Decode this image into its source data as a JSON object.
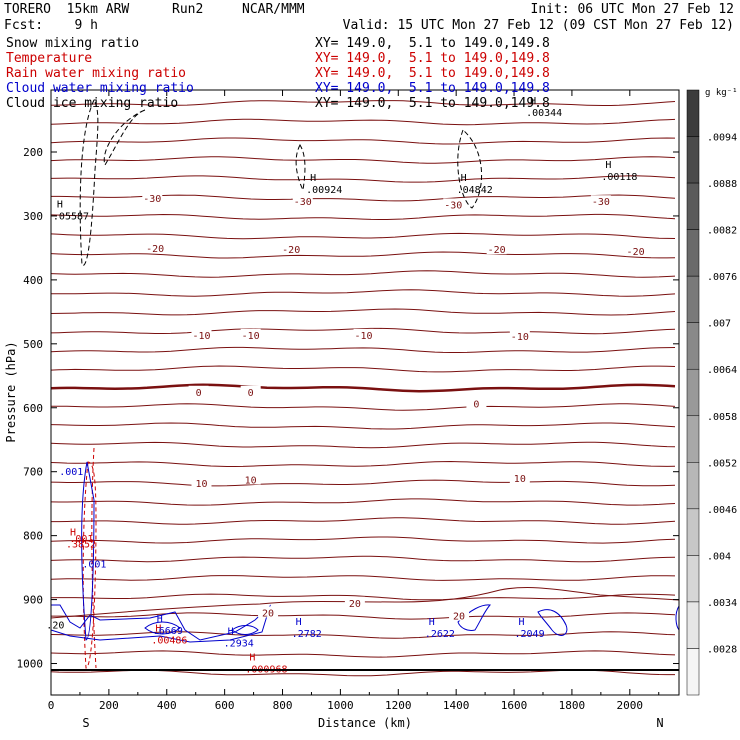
{
  "header": {
    "model": "TORERO  15km ARW",
    "run": "Run2",
    "org": "NCAR/MMM",
    "init": "Init: 06 UTC Mon 27 Feb 12",
    "fcst": "Fcst:    9 h",
    "valid": "Valid: 15 UTC Mon 27 Feb 12 (09 CST Mon 27 Feb 12)"
  },
  "fields": [
    {
      "name": "Snow mixing ratio",
      "color": "#000000",
      "range": "XY= 149.0,  5.1 to 149.0,149.8",
      "range_color": "#000000"
    },
    {
      "name": "Temperature",
      "color": "#cc0000",
      "range": "XY= 149.0,  5.1 to 149.0,149.8",
      "range_color": "#cc0000"
    },
    {
      "name": "Rain water mixing ratio",
      "color": "#cc0000",
      "range": "XY= 149.0,  5.1 to 149.0,149.8",
      "range_color": "#cc0000"
    },
    {
      "name": "Cloud water mixing ratio",
      "color": "#0000cc",
      "range": "XY= 149.0,  5.1 to 149.0,149.8",
      "range_color": "#0000cc"
    },
    {
      "name": "Cloud ice mixing ratio",
      "color": "#000000",
      "range": "XY= 149.0,  5.1 to 149.0,149.8",
      "range_color": "#000000"
    }
  ],
  "chart_data": {
    "type": "line",
    "xlabel": "Distance (km)",
    "ylabel": "Pressure (hPa)",
    "xlim": [
      0,
      2170
    ],
    "ylim": [
      1045,
      100
    ],
    "x_ticks": [
      "0",
      "200",
      "400",
      "600",
      "800",
      "1000",
      "1200",
      "1400",
      "1600",
      "1800",
      "2000"
    ],
    "y_ticks": [
      "200",
      "300",
      "400",
      "500",
      "600",
      "700",
      "800",
      "900",
      "1000"
    ],
    "x_end_labels": {
      "left": "S",
      "right": "N"
    },
    "colorbar": {
      "unit": "g kg⁻¹",
      "ticks": [
        ".0094",
        ".0088",
        ".0082",
        ".0076",
        ".007",
        ".0064",
        ".0058",
        ".0052",
        ".0046",
        ".004",
        ".0034",
        ".0028"
      ]
    },
    "isotherm_labels": [
      {
        "x": 350,
        "p": 272,
        "text": "-30"
      },
      {
        "x": 870,
        "p": 277,
        "text": "-30"
      },
      {
        "x": 1390,
        "p": 282,
        "text": "-30"
      },
      {
        "x": 1900,
        "p": 277,
        "text": "-30"
      },
      {
        "x": 360,
        "p": 350,
        "text": "-20"
      },
      {
        "x": 830,
        "p": 352,
        "text": "-20"
      },
      {
        "x": 1540,
        "p": 352,
        "text": "-20"
      },
      {
        "x": 2020,
        "p": 355,
        "text": "-20"
      },
      {
        "x": 520,
        "p": 486,
        "text": "-10"
      },
      {
        "x": 690,
        "p": 486,
        "text": "-10"
      },
      {
        "x": 1080,
        "p": 486,
        "text": "-10"
      },
      {
        "x": 1620,
        "p": 488,
        "text": "-10"
      },
      {
        "x": 510,
        "p": 575,
        "text": "0"
      },
      {
        "x": 690,
        "p": 575,
        "text": "0"
      },
      {
        "x": 1470,
        "p": 593,
        "text": "0"
      },
      {
        "x": 520,
        "p": 718,
        "text": "10"
      },
      {
        "x": 690,
        "p": 712,
        "text": "10"
      },
      {
        "x": 1620,
        "p": 710,
        "text": "10"
      },
      {
        "x": 1410,
        "p": 925,
        "text": "20"
      },
      {
        "x": 1050,
        "p": 905,
        "text": "20"
      },
      {
        "x": 750,
        "p": 920,
        "text": "20"
      }
    ],
    "extrema": [
      {
        "x": 55,
        "p": 287,
        "value": ".05587",
        "color": "#000000"
      },
      {
        "x": 930,
        "p": 245,
        "value": ".00924",
        "color": "#000000"
      },
      {
        "x": 1450,
        "p": 245,
        "value": ".04842",
        "color": "#000000"
      },
      {
        "x": 1950,
        "p": 225,
        "value": ".00118",
        "color": "#000000"
      },
      {
        "x": 1690,
        "p": 125,
        "value": ".00344",
        "color": "#000000"
      },
      {
        "x": 100,
        "p": 800,
        "value": ".3852",
        "color": "#cc0000"
      },
      {
        "x": 395,
        "p": 950,
        "value": ".00486",
        "color": "#cc0000"
      },
      {
        "x": 720,
        "p": 995,
        "value": ".000968",
        "color": "#cc0000"
      },
      {
        "x": 400,
        "p": 935,
        "value": ".6669",
        "color": "#0000cc"
      },
      {
        "x": 645,
        "p": 955,
        "value": ".2934",
        "color": "#0000cc"
      },
      {
        "x": 880,
        "p": 940,
        "value": ".2782",
        "color": "#0000cc"
      },
      {
        "x": 1340,
        "p": 940,
        "value": ".2622",
        "color": "#0000cc"
      },
      {
        "x": 1650,
        "p": 940,
        "value": ".2049",
        "color": "#0000cc"
      }
    ],
    "small_labels": [
      {
        "x": 70,
        "p": 705,
        "text": ".001",
        "color": "#0000cc"
      },
      {
        "x": 105,
        "p": 810,
        "text": ".001",
        "color": "#cc0000"
      },
      {
        "x": 150,
        "p": 850,
        "text": ".001",
        "color": "#0000cc"
      },
      {
        "x": 15,
        "p": 945,
        "text": ".20",
        "color": "#000000"
      }
    ]
  }
}
